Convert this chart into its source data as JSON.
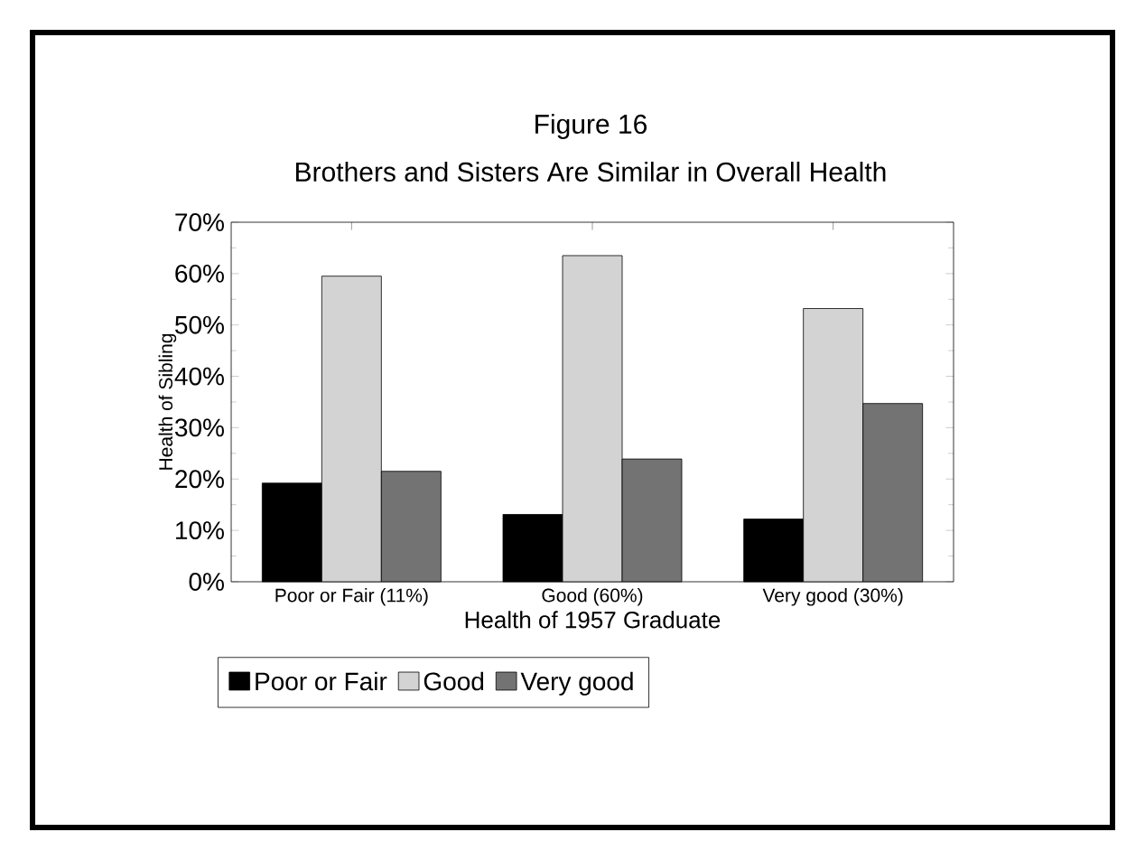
{
  "chart_data": {
    "type": "bar",
    "title": "Figure 16",
    "subtitle": "Brothers and Sisters Are Similar in Overall Health",
    "xlabel": "Health of 1957 Graduate",
    "ylabel": "Health of Sibling",
    "categories": [
      "Poor or Fair (11%)",
      "Good (60%)",
      "Very good (30%)"
    ],
    "series": [
      {
        "name": "Poor or Fair",
        "color": "#000000",
        "values": [
          19.2,
          13.1,
          12.2
        ]
      },
      {
        "name": "Good",
        "color": "#d3d3d3",
        "values": [
          59.5,
          63.5,
          53.2
        ]
      },
      {
        "name": "Very good",
        "color": "#737373",
        "values": [
          21.5,
          23.9,
          34.7
        ]
      }
    ],
    "ylim": [
      0,
      70
    ],
    "yticks": [
      {
        "value": 0,
        "label": "0%"
      },
      {
        "value": 10,
        "label": "10%"
      },
      {
        "value": 20,
        "label": "20%"
      },
      {
        "value": 30,
        "label": "30%"
      },
      {
        "value": 40,
        "label": "40%"
      },
      {
        "value": 50,
        "label": "50%"
      },
      {
        "value": 60,
        "label": "60%"
      },
      {
        "value": 70,
        "label": "70%"
      }
    ],
    "grid": false,
    "legend": "bottom"
  }
}
